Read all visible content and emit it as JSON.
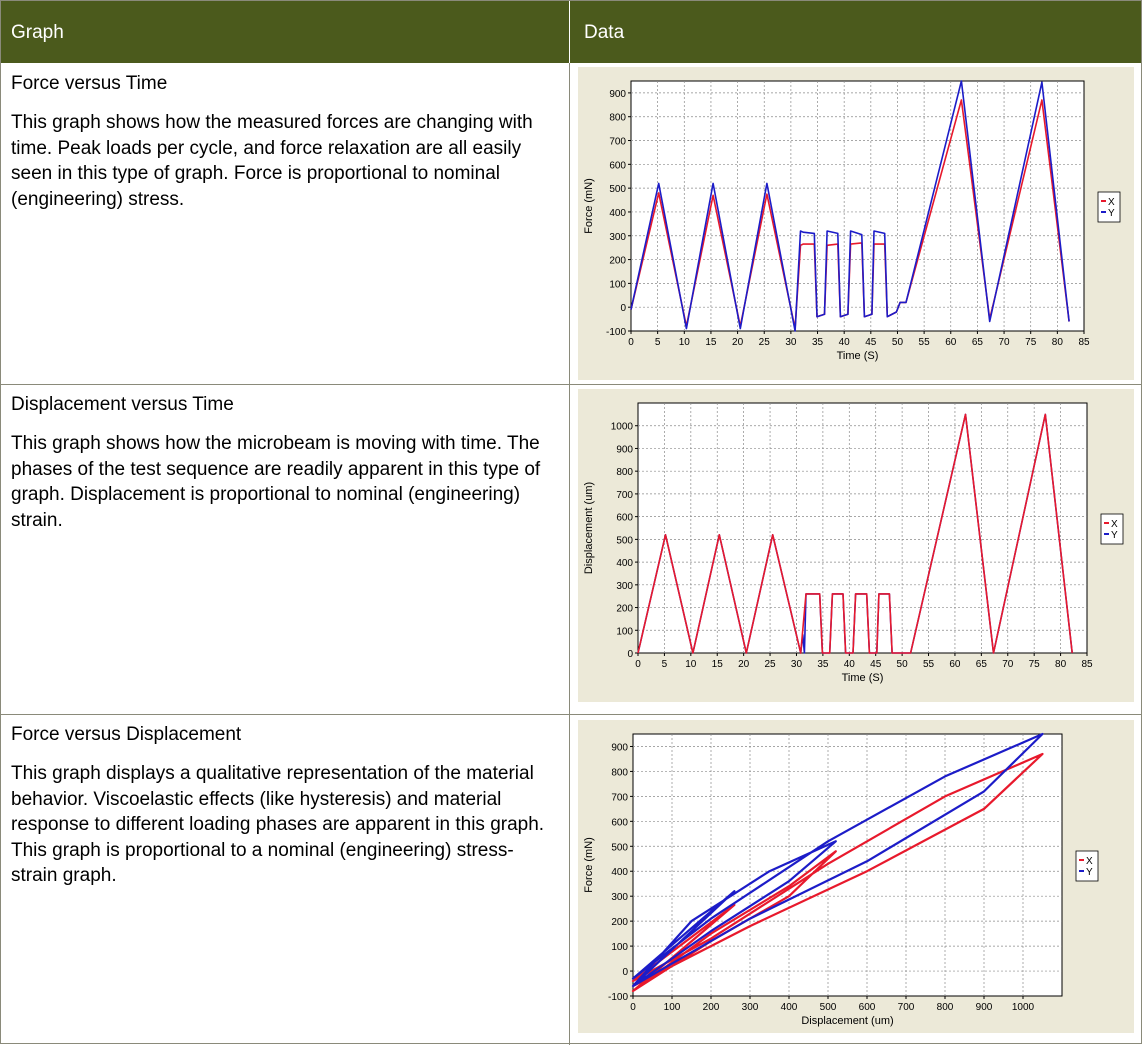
{
  "header": {
    "col1": "Graph",
    "col2": "Data"
  },
  "rows": [
    {
      "title": "Force versus Time",
      "description": "This graph shows how the measured forces are changing with time. Peak loads per cycle, and force relaxation are all easily seen in this type of graph. Force is proportional to nominal (engineering) stress."
    },
    {
      "title": "Displacement versus Time",
      "description": "This graph shows how the microbeam is moving with time. The phases of the test sequence are readily apparent in this type of graph. Displacement is proportional to nominal (engineering) strain."
    },
    {
      "title": "Force versus Displacement",
      "description": "This graph displays a qualitative representation of the material behavior. Viscoelastic effects (like hysteresis) and material response to different loading phases are apparent in this graph. This graph is proportional to a nominal (engineering) stress-strain graph."
    }
  ],
  "colors": {
    "header_bg": "#4b5a1c",
    "chart_bg": "#ece9d8",
    "x_series": "#e8192c",
    "y_series": "#1c1cc8"
  },
  "chart_data": [
    {
      "type": "line",
      "xlabel": "Time (S)",
      "ylabel": "Force (mN)",
      "xlim": [
        0,
        85
      ],
      "ylim": [
        -100,
        950
      ],
      "xticks": [
        0,
        5,
        10,
        15,
        20,
        25,
        30,
        35,
        40,
        45,
        50,
        55,
        60,
        65,
        70,
        75,
        80,
        85
      ],
      "yticks": [
        -100,
        0,
        100,
        200,
        300,
        400,
        500,
        600,
        700,
        800,
        900
      ],
      "grid": true,
      "legend_position": "right",
      "series": [
        {
          "name": "X",
          "x": [
            0,
            5.2,
            10.4,
            15.4,
            20.5,
            25.5,
            30.8,
            31.8,
            32.3,
            34.4,
            34.9,
            36.3,
            36.8,
            38.8,
            39.3,
            40.7,
            41.2,
            43.3,
            43.8,
            45.2,
            45.6,
            47.6,
            48.1,
            49.8,
            50.5,
            51.6,
            62.0,
            67.3,
            77.1,
            82.2
          ],
          "y": [
            -10,
            480,
            -80,
            470,
            -80,
            475,
            -90,
            260,
            265,
            265,
            -40,
            -30,
            260,
            265,
            -40,
            -30,
            265,
            270,
            -40,
            -30,
            265,
            265,
            -40,
            -20,
            20,
            20,
            870,
            -50,
            870,
            -60
          ]
        },
        {
          "name": "Y",
          "x": [
            0,
            5.2,
            10.4,
            15.4,
            20.5,
            25.5,
            30.8,
            31.8,
            32.3,
            34.4,
            34.9,
            36.3,
            36.8,
            38.8,
            39.3,
            40.7,
            41.2,
            43.3,
            43.8,
            45.2,
            45.6,
            47.6,
            48.1,
            49.8,
            50.5,
            51.6,
            62.0,
            67.3,
            77.1,
            82.2
          ],
          "y": [
            -10,
            520,
            -90,
            520,
            -90,
            520,
            -100,
            320,
            315,
            310,
            -40,
            -30,
            320,
            310,
            -40,
            -30,
            320,
            305,
            -40,
            -30,
            320,
            310,
            -40,
            -20,
            20,
            20,
            950,
            -60,
            945,
            -60
          ]
        }
      ]
    },
    {
      "type": "line",
      "xlabel": "Time (S)",
      "ylabel": "Displacement (um)",
      "xlim": [
        0,
        85
      ],
      "ylim": [
        0,
        1100
      ],
      "xticks": [
        0,
        5,
        10,
        15,
        20,
        25,
        30,
        35,
        40,
        45,
        50,
        55,
        60,
        65,
        70,
        75,
        80,
        85
      ],
      "yticks": [
        0,
        100,
        200,
        300,
        400,
        500,
        600,
        700,
        800,
        900,
        1000
      ],
      "grid": true,
      "legend_position": "right",
      "series": [
        {
          "name": "X",
          "x": [
            0,
            5.2,
            10.4,
            15.4,
            20.5,
            25.5,
            30.8,
            31.8,
            32.3,
            34.4,
            34.9,
            36.3,
            36.8,
            38.8,
            39.3,
            40.7,
            41.2,
            43.3,
            43.8,
            45.2,
            45.6,
            47.6,
            48.1,
            51.6,
            62.0,
            67.3,
            77.1,
            82.2
          ],
          "y": [
            0,
            520,
            0,
            520,
            0,
            520,
            0,
            260,
            260,
            260,
            0,
            0,
            260,
            260,
            0,
            0,
            260,
            260,
            0,
            0,
            260,
            260,
            0,
            0,
            1050,
            0,
            1050,
            0
          ]
        },
        {
          "name": "Y",
          "x": [
            0,
            5.2,
            10.4,
            15.4,
            20.5,
            25.5,
            30.8,
            31.2,
            31.5,
            31.8,
            32.3,
            34.4,
            34.9,
            36.3,
            36.8,
            38.8,
            39.3,
            40.7,
            41.2,
            43.3,
            43.8,
            45.2,
            45.6,
            47.6,
            48.1,
            51.6,
            62.0,
            67.3,
            77.1,
            82.2
          ],
          "y": [
            0,
            520,
            0,
            520,
            0,
            520,
            0,
            80,
            0,
            260,
            260,
            260,
            0,
            0,
            260,
            260,
            0,
            0,
            260,
            260,
            0,
            0,
            260,
            260,
            0,
            0,
            1050,
            0,
            1050,
            0
          ]
        }
      ]
    },
    {
      "type": "line",
      "xlabel": "Displacement (um)",
      "ylabel": "Force (mN)",
      "xlim": [
        0,
        1100
      ],
      "ylim": [
        -100,
        950
      ],
      "xticks": [
        0,
        100,
        200,
        300,
        400,
        500,
        600,
        700,
        800,
        900,
        1000
      ],
      "yticks": [
        -100,
        0,
        100,
        200,
        300,
        400,
        500,
        600,
        700,
        800,
        900
      ],
      "grid": true,
      "legend_position": "right",
      "series": [
        {
          "name": "X",
          "x": [
            0,
            200,
            400,
            520,
            400,
            200,
            0,
            260,
            0,
            200,
            500,
            800,
            1050,
            900,
            600,
            300,
            0
          ],
          "y": [
            -80,
            150,
            340,
            480,
            300,
            120,
            -80,
            265,
            -40,
            130,
            430,
            700,
            870,
            650,
            400,
            180,
            -60
          ]
        },
        {
          "name": "Y",
          "x": [
            0,
            150,
            350,
            520,
            400,
            200,
            0,
            260,
            0,
            200,
            500,
            800,
            1050,
            900,
            600,
            300,
            0
          ],
          "y": [
            -60,
            200,
            400,
            520,
            360,
            160,
            -60,
            320,
            -30,
            210,
            520,
            780,
            950,
            720,
            440,
            210,
            -60
          ]
        }
      ]
    }
  ]
}
